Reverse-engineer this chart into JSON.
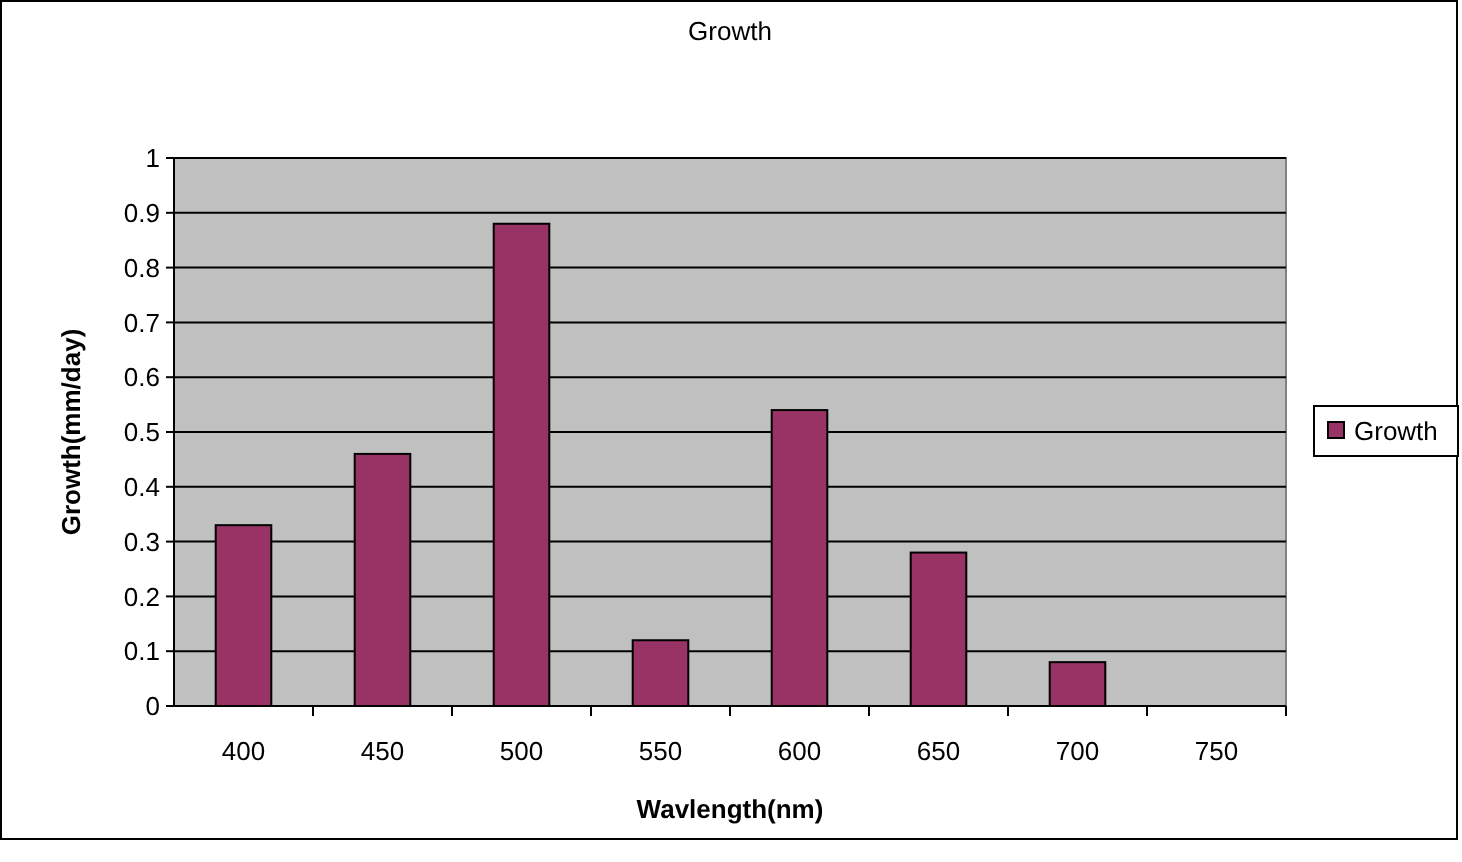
{
  "chart_data": {
    "type": "bar",
    "title": "Growth",
    "xlabel": "Wavlength(nm)",
    "ylabel": "Growth(mm/day)",
    "categories": [
      "400",
      "450",
      "500",
      "550",
      "600",
      "650",
      "700",
      "750"
    ],
    "series": [
      {
        "name": "Growth",
        "color": "#993366",
        "values": [
          0.33,
          0.46,
          0.88,
          0.12,
          0.54,
          0.28,
          0.08,
          0
        ]
      }
    ],
    "ylim": [
      0,
      1
    ],
    "yticks": [
      0,
      0.1,
      0.2,
      0.3,
      0.4,
      0.5,
      0.6,
      0.7,
      0.8,
      0.9,
      1
    ],
    "grid": "y",
    "legend": "right"
  }
}
